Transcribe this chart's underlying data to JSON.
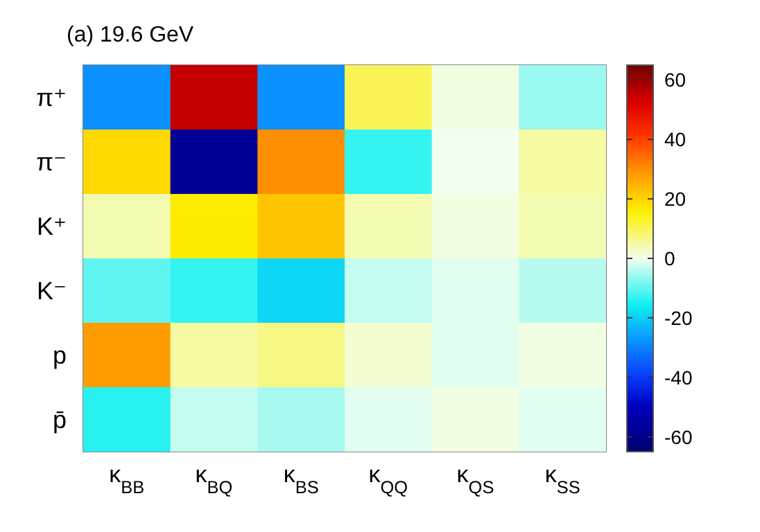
{
  "chart_data": {
    "type": "heatmap",
    "title": "(a) 19.6 GeV",
    "categories": [
      "κ$_{BB}$",
      "κ$_{BQ}$",
      "κ$_{BS}$",
      "κ$_{QQ}$",
      "κ$_{QS}$",
      "κ$_{SS}$"
    ],
    "y_categories": [
      "π⁺",
      "π⁻",
      "K⁺",
      "K⁻",
      "p",
      "p̄"
    ],
    "cells": [
      [
        -28,
        55,
        -28,
        10,
        1,
        -6
      ],
      [
        19,
        -58,
        30,
        -13,
        0,
        5
      ],
      [
        4,
        16,
        22,
        4,
        1,
        4
      ],
      [
        -10,
        -13,
        -19,
        -3,
        -1,
        -4
      ],
      [
        28,
        5,
        7,
        2,
        -1,
        1
      ],
      [
        -14,
        -3,
        -5,
        -1,
        1,
        -1
      ]
    ],
    "clim": [
      -65,
      65
    ],
    "cticks": [
      -60,
      -40,
      -20,
      0,
      20,
      40,
      60
    ]
  }
}
